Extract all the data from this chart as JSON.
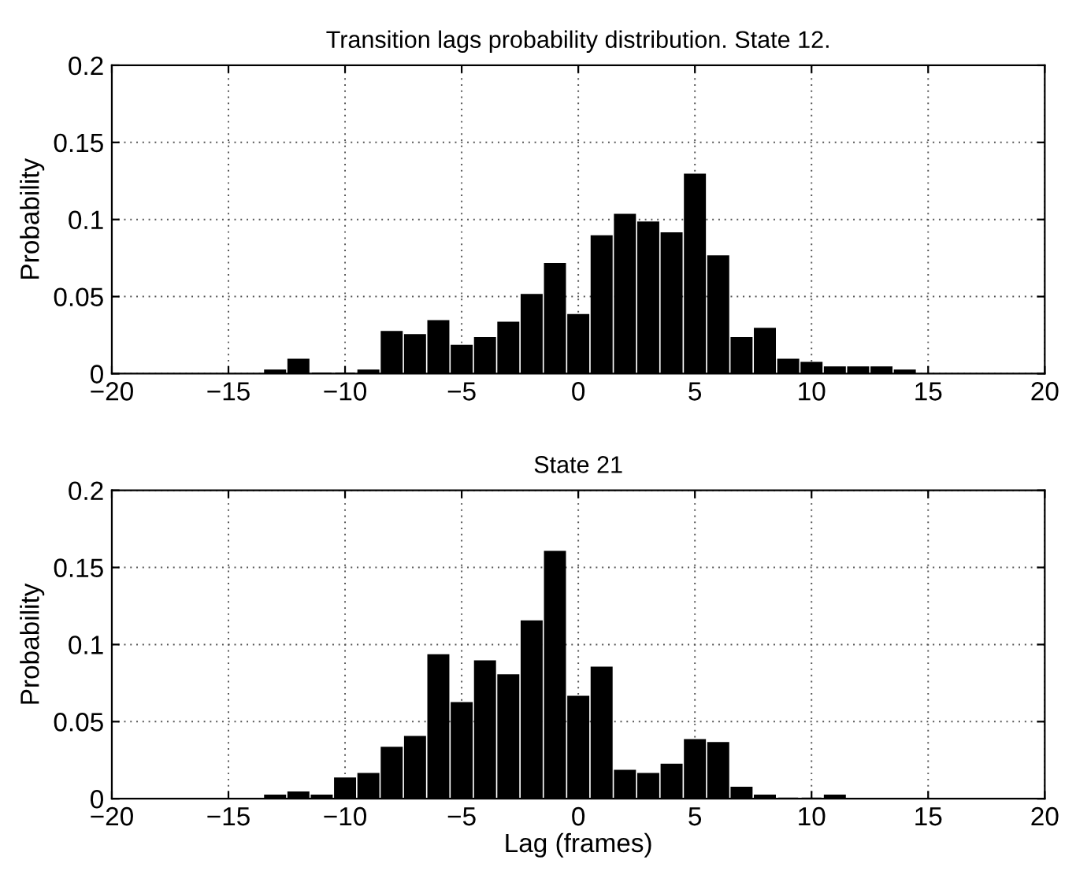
{
  "chart_data": [
    {
      "type": "bar",
      "title": "Transition lags probability distribution. State 12.",
      "ylabel": "Probability",
      "x": [
        -13,
        -12,
        -11,
        -10,
        -9,
        -8,
        -7,
        -6,
        -5,
        -4,
        -3,
        -2,
        -1,
        0,
        1,
        2,
        3,
        4,
        5,
        6,
        7,
        8,
        9,
        10,
        11,
        12,
        13,
        14
      ],
      "values": [
        0.002,
        0.009,
        0,
        0,
        0.002,
        0.027,
        0.025,
        0.034,
        0.018,
        0.023,
        0.033,
        0.051,
        0.071,
        0.038,
        0.089,
        0.103,
        0.098,
        0.091,
        0.129,
        0.076,
        0.023,
        0.029,
        0.009,
        0.007,
        0.004,
        0.004,
        0.004,
        0.002
      ],
      "color": "#000000",
      "xlim": [
        -20,
        20
      ],
      "xticks": [
        -20,
        -15,
        -10,
        -5,
        0,
        5,
        10,
        15,
        20
      ],
      "ylim": [
        0,
        0.2
      ],
      "yticks": [
        0,
        0.05,
        0.1,
        0.15,
        0.2
      ],
      "grid": true
    },
    {
      "type": "bar",
      "title": "State 21",
      "ylabel": "Probability",
      "xlabel": "Lag (frames)",
      "x": [
        -13,
        -12,
        -11,
        -10,
        -9,
        -8,
        -7,
        -6,
        -5,
        -4,
        -3,
        -2,
        -1,
        0,
        1,
        2,
        3,
        4,
        5,
        6,
        7,
        8,
        9,
        10,
        11
      ],
      "values": [
        0.002,
        0.004,
        0.002,
        0.013,
        0.016,
        0.033,
        0.04,
        0.093,
        0.062,
        0.089,
        0.08,
        0.115,
        0.16,
        0.066,
        0.085,
        0.018,
        0.016,
        0.022,
        0.038,
        0.036,
        0.007,
        0.002,
        0,
        0,
        0.002
      ],
      "color": "#000000",
      "xlim": [
        -20,
        20
      ],
      "xticks": [
        -20,
        -15,
        -10,
        -5,
        0,
        5,
        10,
        15,
        20
      ],
      "ylim": [
        0,
        0.2
      ],
      "yticks": [
        0,
        0.05,
        0.1,
        0.15,
        0.2
      ],
      "grid": true
    }
  ]
}
